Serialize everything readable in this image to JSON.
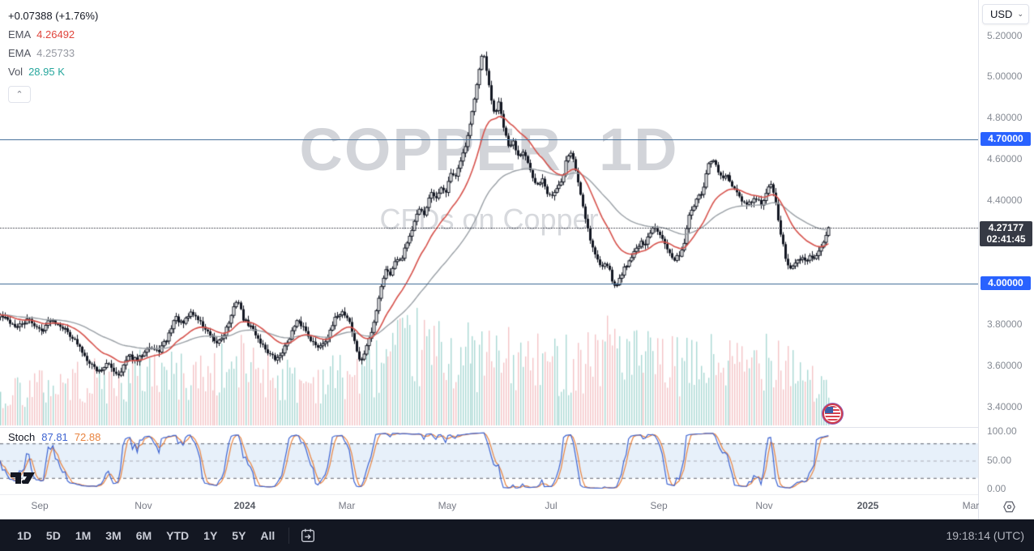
{
  "legend": {
    "change": "+0.07388 (+1.76%)",
    "ema1_label": "EMA",
    "ema1_value": "4.26492",
    "ema2_label": "EMA",
    "ema2_value": "4.25733",
    "vol_label": "Vol",
    "vol_value": "28.95 K"
  },
  "currency_selector": {
    "value": "USD"
  },
  "stoch_legend": {
    "label": "Stoch",
    "k_value": "87.81",
    "d_value": "72.88"
  },
  "toolbar": {
    "ranges": [
      "1D",
      "5D",
      "1M",
      "3M",
      "6M",
      "YTD",
      "1Y",
      "5Y",
      "All"
    ],
    "clock": "19:18:14 (UTC)"
  },
  "colors": {
    "accent_blue": "#2962ff",
    "level_line": "#49739c",
    "badge_dark": "#363a45",
    "ema_fast": "#d6524c",
    "ema_slow": "#9aa0a6",
    "candle": "#131722",
    "vol_up": "#a8d8d3",
    "vol_down": "#f3c3c6",
    "stoch_k": "#3e64d1",
    "stoch_d": "#e8833f",
    "stoch_band": "#e7f0fa",
    "watermark": "#d2d4d9"
  },
  "chart_data": {
    "type": "candlestick",
    "symbol": "COPPER",
    "interval": "1D",
    "description": "CFDs on Copper",
    "currency": "USD",
    "title": "COPPER, 1D",
    "subtitle": "CFDs on Copper",
    "change_label": "+0.07388 (+1.76%)",
    "last_price": 4.27177,
    "last_price_label": "4.27177",
    "countdown": "02:41:45",
    "ema_fast_value": 4.26492,
    "ema_slow_value": 4.25733,
    "volume_last": "28.95 K",
    "price_ylim": [
      3.305,
      5.375
    ],
    "price_ticks": [
      {
        "v": 5.2,
        "label": "5.20000"
      },
      {
        "v": 5.0,
        "label": "5.00000"
      },
      {
        "v": 4.8,
        "label": "4.80000"
      },
      {
        "v": 4.6,
        "label": "4.60000"
      },
      {
        "v": 4.4,
        "label": "4.40000"
      },
      {
        "v": 3.8,
        "label": "3.80000"
      },
      {
        "v": 3.6,
        "label": "3.60000"
      },
      {
        "v": 3.4,
        "label": "3.40000"
      }
    ],
    "levels": [
      {
        "v": 4.7,
        "label": "4.70000"
      },
      {
        "v": 4.0,
        "label": "4.00000"
      }
    ],
    "x_ticks": [
      {
        "t": 0.0406,
        "label": "Sep"
      },
      {
        "t": 0.1466,
        "label": "Nov"
      },
      {
        "t": 0.2502,
        "label": "2024",
        "year": true
      },
      {
        "t": 0.3546,
        "label": "Mar"
      },
      {
        "t": 0.4573,
        "label": "May"
      },
      {
        "t": 0.5634,
        "label": "Jul"
      },
      {
        "t": 0.6736,
        "label": "Sep"
      },
      {
        "t": 0.7813,
        "label": "Nov"
      },
      {
        "t": 0.8873,
        "label": "2025",
        "year": true
      },
      {
        "t": 0.9925,
        "label": "Mar"
      }
    ],
    "x_extent": 0.847,
    "n_candles": 345,
    "price_waypoints": [
      [
        0.0,
        3.847
      ],
      [
        0.02,
        3.788
      ],
      [
        0.034,
        3.827
      ],
      [
        0.049,
        3.768
      ],
      [
        0.061,
        3.827
      ],
      [
        0.073,
        3.8
      ],
      [
        0.088,
        3.737
      ],
      [
        0.103,
        3.643
      ],
      [
        0.118,
        3.573
      ],
      [
        0.129,
        3.612
      ],
      [
        0.142,
        3.557
      ],
      [
        0.155,
        3.651
      ],
      [
        0.166,
        3.624
      ],
      [
        0.178,
        3.698
      ],
      [
        0.19,
        3.667
      ],
      [
        0.201,
        3.729
      ],
      [
        0.211,
        3.839
      ],
      [
        0.22,
        3.8
      ],
      [
        0.23,
        3.863
      ],
      [
        0.24,
        3.82
      ],
      [
        0.25,
        3.761
      ],
      [
        0.26,
        3.706
      ],
      [
        0.269,
        3.745
      ],
      [
        0.279,
        3.839
      ],
      [
        0.286,
        3.933
      ],
      [
        0.294,
        3.824
      ],
      [
        0.304,
        3.784
      ],
      [
        0.313,
        3.722
      ],
      [
        0.323,
        3.667
      ],
      [
        0.333,
        3.627
      ],
      [
        0.343,
        3.69
      ],
      [
        0.351,
        3.761
      ],
      [
        0.358,
        3.816
      ],
      [
        0.366,
        3.792
      ],
      [
        0.374,
        3.737
      ],
      [
        0.382,
        3.69
      ],
      [
        0.39,
        3.714
      ],
      [
        0.398,
        3.761
      ],
      [
        0.406,
        3.847
      ],
      [
        0.413,
        3.863
      ],
      [
        0.421,
        3.824
      ],
      [
        0.429,
        3.69
      ],
      [
        0.435,
        3.612
      ],
      [
        0.443,
        3.714
      ],
      [
        0.449,
        3.776
      ],
      [
        0.454,
        3.886
      ],
      [
        0.46,
        4.004
      ],
      [
        0.466,
        4.075
      ],
      [
        0.472,
        4.043
      ],
      [
        0.478,
        4.129
      ],
      [
        0.484,
        4.114
      ],
      [
        0.49,
        4.192
      ],
      [
        0.496,
        4.247
      ],
      [
        0.501,
        4.31
      ],
      [
        0.507,
        4.365
      ],
      [
        0.513,
        4.333
      ],
      [
        0.519,
        4.443
      ],
      [
        0.525,
        4.404
      ],
      [
        0.531,
        4.467
      ],
      [
        0.537,
        4.435
      ],
      [
        0.543,
        4.537
      ],
      [
        0.548,
        4.506
      ],
      [
        0.554,
        4.569
      ],
      [
        0.56,
        4.655
      ],
      [
        0.566,
        4.765
      ],
      [
        0.572,
        4.875
      ],
      [
        0.578,
        5.016
      ],
      [
        0.583,
        5.133
      ],
      [
        0.588,
        5.004
      ],
      [
        0.593,
        4.886
      ],
      [
        0.597,
        4.82
      ],
      [
        0.602,
        4.875
      ],
      [
        0.607,
        4.769
      ],
      [
        0.613,
        4.663
      ],
      [
        0.619,
        4.686
      ],
      [
        0.625,
        4.624
      ],
      [
        0.631,
        4.647
      ],
      [
        0.637,
        4.576
      ],
      [
        0.642,
        4.506
      ],
      [
        0.648,
        4.475
      ],
      [
        0.654,
        4.514
      ],
      [
        0.66,
        4.443
      ],
      [
        0.666,
        4.427
      ],
      [
        0.672,
        4.459
      ],
      [
        0.678,
        4.49
      ],
      [
        0.684,
        4.608
      ],
      [
        0.69,
        4.639
      ],
      [
        0.695,
        4.545
      ],
      [
        0.701,
        4.427
      ],
      [
        0.707,
        4.31
      ],
      [
        0.713,
        4.2
      ],
      [
        0.719,
        4.129
      ],
      [
        0.725,
        4.082
      ],
      [
        0.731,
        4.114
      ],
      [
        0.736,
        4.051
      ],
      [
        0.742,
        3.973
      ],
      [
        0.748,
        4.035
      ],
      [
        0.754,
        4.082
      ],
      [
        0.76,
        4.122
      ],
      [
        0.766,
        4.161
      ],
      [
        0.772,
        4.2
      ],
      [
        0.778,
        4.176
      ],
      [
        0.783,
        4.231
      ],
      [
        0.789,
        4.271
      ],
      [
        0.795,
        4.255
      ],
      [
        0.801,
        4.216
      ],
      [
        0.807,
        4.153
      ],
      [
        0.813,
        4.106
      ],
      [
        0.819,
        4.137
      ],
      [
        0.825,
        4.184
      ],
      [
        0.83,
        4.31
      ],
      [
        0.836,
        4.373
      ],
      [
        0.842,
        4.412
      ],
      [
        0.848,
        4.451
      ],
      [
        0.854,
        4.569
      ],
      [
        0.86,
        4.6
      ],
      [
        0.866,
        4.545
      ],
      [
        0.872,
        4.506
      ],
      [
        0.877,
        4.529
      ],
      [
        0.883,
        4.475
      ],
      [
        0.889,
        4.435
      ],
      [
        0.895,
        4.404
      ],
      [
        0.901,
        4.38
      ],
      [
        0.907,
        4.396
      ],
      [
        0.913,
        4.412
      ],
      [
        0.919,
        4.38
      ],
      [
        0.925,
        4.443
      ],
      [
        0.93,
        4.482
      ],
      [
        0.936,
        4.388
      ],
      [
        0.942,
        4.239
      ],
      [
        0.948,
        4.114
      ],
      [
        0.954,
        4.067
      ],
      [
        0.96,
        4.098
      ],
      [
        0.966,
        4.129
      ],
      [
        0.972,
        4.098
      ],
      [
        0.978,
        4.145
      ],
      [
        0.984,
        4.114
      ],
      [
        0.99,
        4.169
      ],
      [
        0.996,
        4.216
      ],
      [
        1.0,
        4.27177
      ]
    ],
    "volume_envelope": [
      [
        0.0,
        55
      ],
      [
        0.05,
        65
      ],
      [
        0.1,
        75
      ],
      [
        0.15,
        70
      ],
      [
        0.18,
        95
      ],
      [
        0.22,
        80
      ],
      [
        0.27,
        90
      ],
      [
        0.3,
        105
      ],
      [
        0.33,
        85
      ],
      [
        0.36,
        70
      ],
      [
        0.4,
        80
      ],
      [
        0.44,
        90
      ],
      [
        0.47,
        110
      ],
      [
        0.5,
        130
      ],
      [
        0.53,
        120
      ],
      [
        0.56,
        115
      ],
      [
        0.6,
        110
      ],
      [
        0.63,
        105
      ],
      [
        0.66,
        100
      ],
      [
        0.7,
        110
      ],
      [
        0.73,
        128
      ],
      [
        0.74,
        150
      ],
      [
        0.76,
        110
      ],
      [
        0.8,
        100
      ],
      [
        0.84,
        95
      ],
      [
        0.86,
        105
      ],
      [
        0.9,
        95
      ],
      [
        0.93,
        132
      ],
      [
        0.95,
        110
      ],
      [
        0.97,
        88
      ],
      [
        0.99,
        60
      ],
      [
        1.0,
        48
      ]
    ],
    "stochastic": {
      "k_period": 14,
      "d_period": 3,
      "upper_band": 80,
      "mid_band": 50,
      "lower_band": 20,
      "ylim": [
        0,
        100
      ],
      "k_last": 87.81,
      "d_last": 72.88,
      "ticks": [
        {
          "v": 100,
          "label": "100.00"
        },
        {
          "v": 50,
          "label": "50.00"
        },
        {
          "v": 0,
          "label": "0.00"
        }
      ]
    }
  }
}
